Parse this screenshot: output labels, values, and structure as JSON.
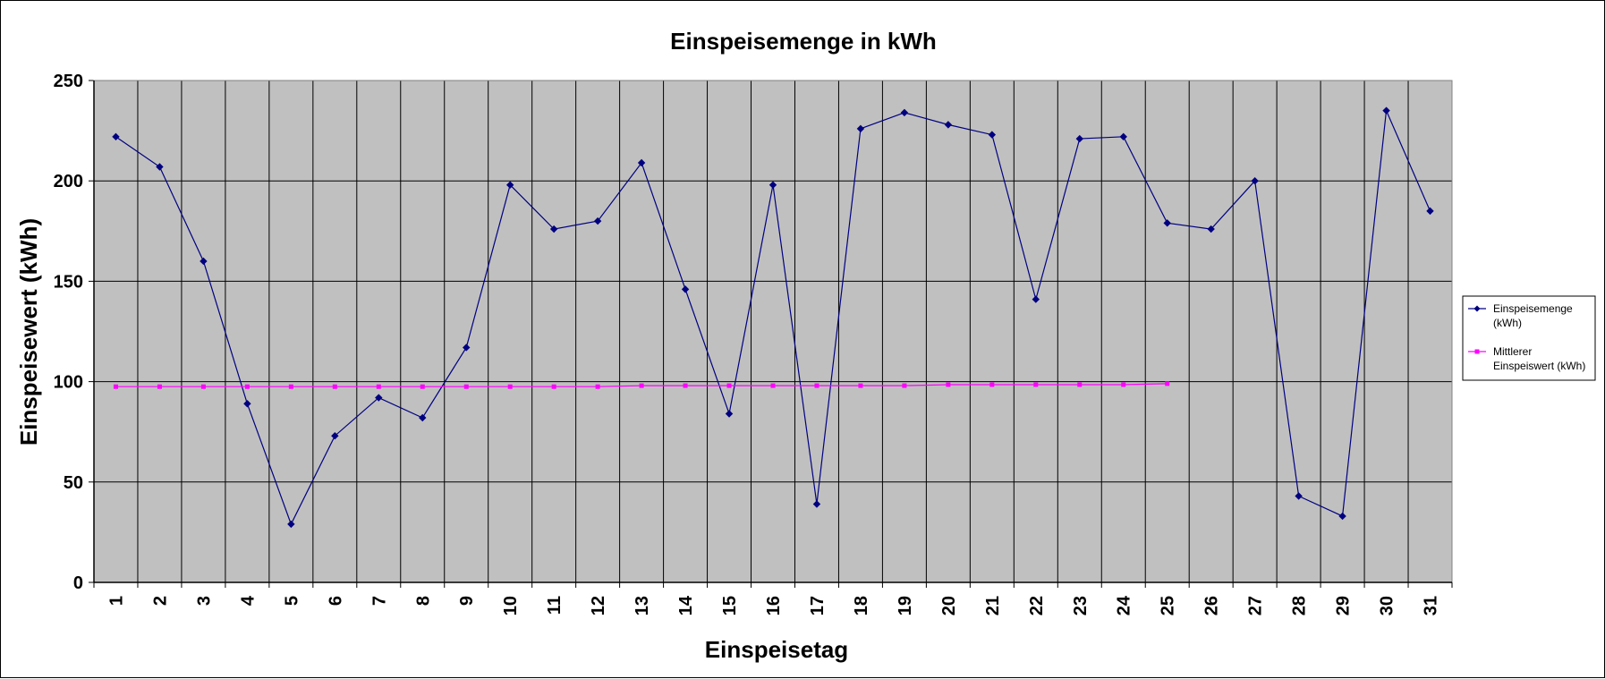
{
  "chart_data": {
    "type": "line",
    "title": "Einspeisemenge in kWh",
    "xlabel": "Einspeisetag",
    "ylabel": "Einspeisewert  (kWh)",
    "ylim": [
      0,
      250
    ],
    "yticks": [
      "0",
      "50",
      "100",
      "150",
      "200",
      "250"
    ],
    "categories": [
      "1",
      "2",
      "3",
      "4",
      "5",
      "6",
      "7",
      "8",
      "9",
      "10",
      "11",
      "12",
      "13",
      "14",
      "15",
      "16",
      "17",
      "18",
      "19",
      "20",
      "21",
      "22",
      "23",
      "24",
      "25",
      "26",
      "27",
      "28",
      "29",
      "30",
      "31"
    ],
    "grid": true,
    "legend_position": "right",
    "plot_background": "#c0c0c0",
    "series": [
      {
        "name": "Einspeisemenge (kWh)",
        "legend_lines": [
          "Einspeisemenge",
          "(kWh)"
        ],
        "color": "#000080",
        "marker": "diamond",
        "values": [
          222,
          207,
          160,
          89,
          29,
          73,
          92,
          82,
          117,
          198,
          176,
          180,
          209,
          146,
          84,
          198,
          39,
          226,
          234,
          228,
          223,
          141,
          221,
          222,
          179,
          176,
          200,
          43,
          33,
          235,
          185
        ]
      },
      {
        "name": "Mittlerer Einspeiswert (kWh)",
        "legend_lines": [
          "Mittlerer",
          "Einspeiswert (kWh)"
        ],
        "color": "#ff00ff",
        "marker": "square",
        "values": [
          97.5,
          97.5,
          97.5,
          97.5,
          97.5,
          97.5,
          97.5,
          97.5,
          97.5,
          97.5,
          97.5,
          97.5,
          98,
          98,
          98,
          98,
          98,
          98,
          98,
          98.5,
          98.5,
          98.5,
          98.5,
          98.5,
          99,
          null,
          null,
          null,
          null,
          null,
          null
        ]
      }
    ]
  }
}
